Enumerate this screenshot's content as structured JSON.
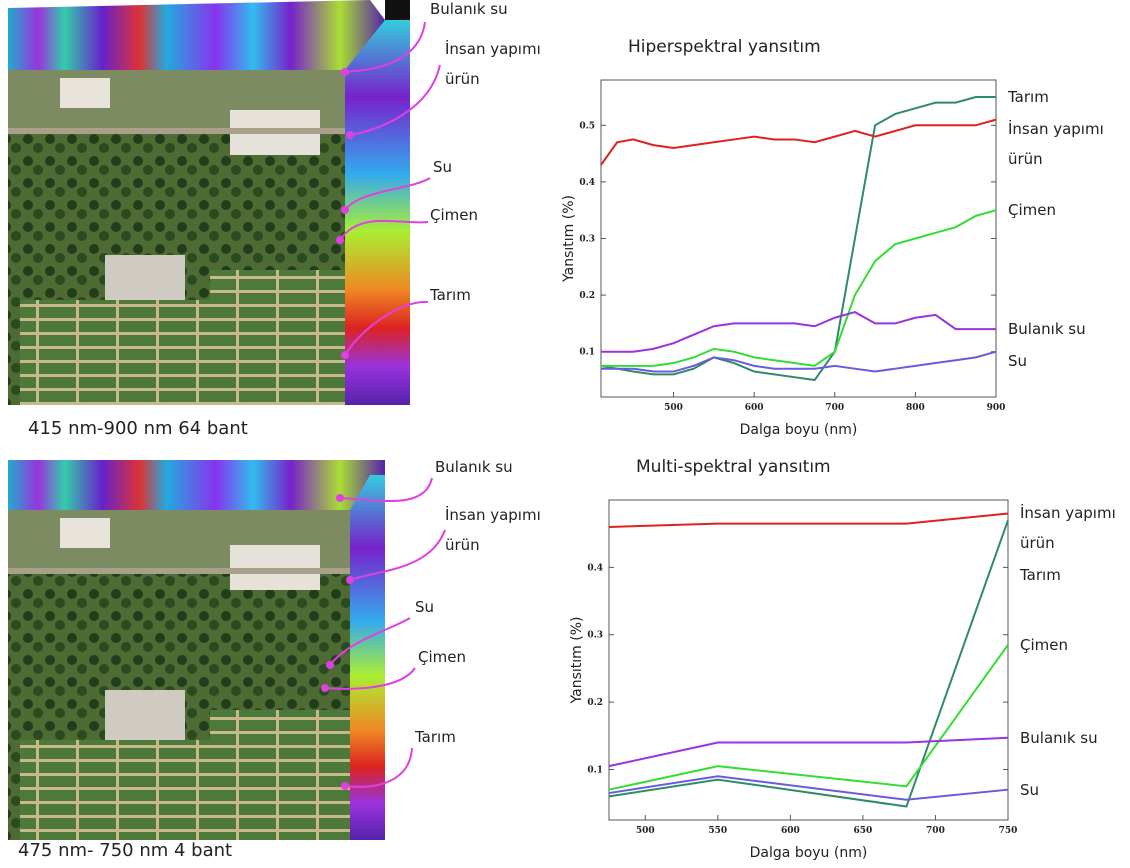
{
  "panels": [
    {
      "caption": "415 nm-900 nm 64 bant",
      "labels": [
        "Bulanık su",
        "İnsan yapımı ürün",
        "Su",
        "Çimen",
        "Tarım"
      ]
    },
    {
      "caption": "475 nm- 750 nm 4 bant",
      "labels": [
        "Bulanık su",
        "İnsan yapımı ürün",
        "Su",
        "Çimen",
        "Tarım"
      ]
    }
  ],
  "chart_data": [
    {
      "type": "line",
      "title": "Hiperspektral  yansıtım",
      "x_label": "Dalga boyu (nm)",
      "y_label": "Yansıtım (%)",
      "x": [
        410,
        430,
        450,
        475,
        500,
        525,
        550,
        575,
        600,
        625,
        650,
        675,
        700,
        725,
        750,
        775,
        800,
        825,
        850,
        875,
        900
      ],
      "xlim": [
        410,
        900
      ],
      "xticks": [
        500,
        600,
        700,
        800,
        900
      ],
      "ylim": [
        0.02,
        0.58
      ],
      "yticks": [
        0.1,
        0.2,
        0.3,
        0.4,
        0.5
      ],
      "series": [
        {
          "name": "Tarım",
          "color": "#2e8b6a",
          "values": [
            0.075,
            0.07,
            0.065,
            0.06,
            0.06,
            0.07,
            0.09,
            0.08,
            0.065,
            0.06,
            0.055,
            0.05,
            0.1,
            0.3,
            0.5,
            0.52,
            0.53,
            0.54,
            0.54,
            0.55,
            0.55
          ]
        },
        {
          "name": "İnsan yapımı ürün",
          "color": "#e02020",
          "values": [
            0.43,
            0.47,
            0.475,
            0.465,
            0.46,
            0.465,
            0.47,
            0.475,
            0.48,
            0.475,
            0.475,
            0.47,
            0.48,
            0.49,
            0.48,
            0.49,
            0.5,
            0.5,
            0.5,
            0.5,
            0.51
          ]
        },
        {
          "name": "Çimen",
          "color": "#33dd33",
          "values": [
            0.075,
            0.075,
            0.075,
            0.075,
            0.08,
            0.09,
            0.105,
            0.1,
            0.09,
            0.085,
            0.08,
            0.075,
            0.1,
            0.2,
            0.26,
            0.29,
            0.3,
            0.31,
            0.32,
            0.34,
            0.35
          ]
        },
        {
          "name": "Bulanık su",
          "color": "#9933dd",
          "values": [
            0.1,
            0.1,
            0.1,
            0.105,
            0.115,
            0.13,
            0.145,
            0.15,
            0.15,
            0.15,
            0.15,
            0.145,
            0.16,
            0.17,
            0.15,
            0.15,
            0.16,
            0.165,
            0.14,
            0.14,
            0.14
          ]
        },
        {
          "name": "Su",
          "color": "#6a5ae0",
          "values": [
            0.07,
            0.07,
            0.07,
            0.065,
            0.065,
            0.075,
            0.09,
            0.085,
            0.075,
            0.07,
            0.07,
            0.07,
            0.075,
            0.07,
            0.065,
            0.07,
            0.075,
            0.08,
            0.085,
            0.09,
            0.1
          ]
        }
      ]
    },
    {
      "type": "line",
      "title": "Multi-spektral yansıtım",
      "x_label": "Dalga boyu (nm)",
      "y_label": "Yansıtım (%)",
      "x": [
        475,
        550,
        680,
        750
      ],
      "xlim": [
        475,
        750
      ],
      "xticks": [
        500,
        550,
        600,
        650,
        700,
        750
      ],
      "ylim": [
        0.025,
        0.5
      ],
      "yticks": [
        0.1,
        0.2,
        0.3,
        0.4
      ],
      "series": [
        {
          "name": "İnsan yapımı ürün",
          "color": "#e02020",
          "values": [
            0.46,
            0.465,
            0.465,
            0.48
          ]
        },
        {
          "name": "Tarım",
          "color": "#2e8b6a",
          "values": [
            0.06,
            0.085,
            0.045,
            0.47
          ]
        },
        {
          "name": "Çimen",
          "color": "#33dd33",
          "values": [
            0.07,
            0.105,
            0.075,
            0.285
          ]
        },
        {
          "name": "Bulanık su",
          "color": "#9933dd",
          "values": [
            0.105,
            0.14,
            0.14,
            0.147
          ]
        },
        {
          "name": "Su",
          "color": "#6a5ae0",
          "values": [
            0.065,
            0.09,
            0.055,
            0.07
          ]
        }
      ]
    }
  ]
}
